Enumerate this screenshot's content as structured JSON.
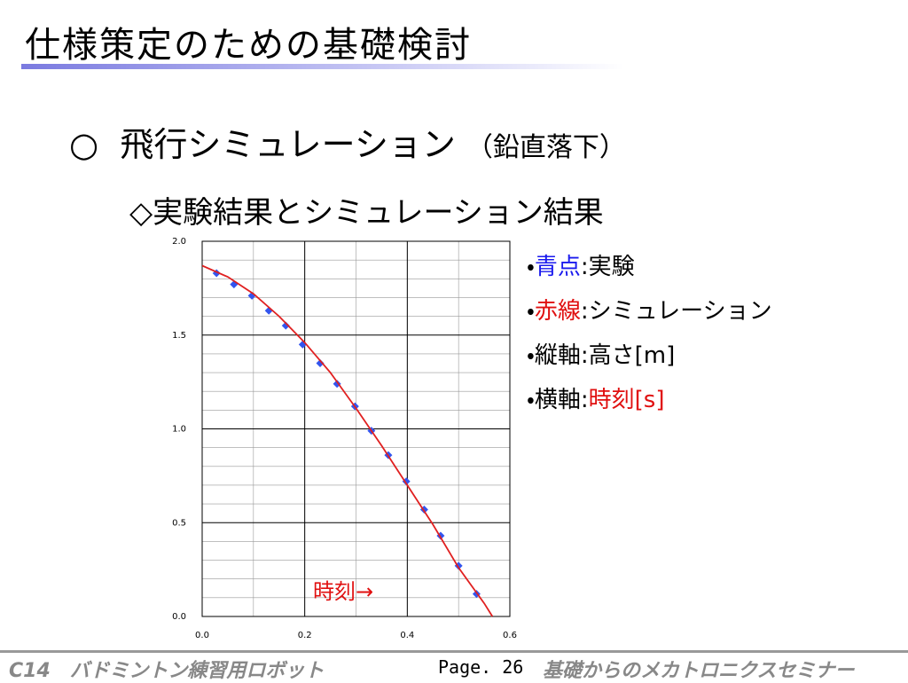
{
  "title": "仕様策定のための基礎検討",
  "heading": {
    "mark": "○",
    "text": "飛行シミュレーション",
    "note": "（鉛直落下）"
  },
  "subheading": "◇実験結果とシミュレーション結果",
  "notes": [
    {
      "bullet": "・",
      "term": "青点",
      "sep": ":",
      "desc": "実験"
    },
    {
      "bullet": "・",
      "term": "赤線",
      "sep": ":",
      "desc": "シミュレーション"
    },
    {
      "bullet": "・",
      "term": "縦軸",
      "sep": ":",
      "desc": "高さ[m]"
    },
    {
      "bullet": "・",
      "term": "横軸",
      "sep": ":",
      "desc": "時刻[s]"
    }
  ],
  "footer": {
    "left": "C14　バドミントン練習用ロボット",
    "page": "Page. 26",
    "right": "基礎からのメカトロニクスセミナー"
  },
  "chart_data": {
    "type": "scatter",
    "annotation": "時刻→",
    "xlim": [
      0,
      0.6
    ],
    "ylim": [
      0,
      2.0
    ],
    "xticks": [
      {
        "value": 0,
        "label": "0.0"
      },
      0.2,
      0.4,
      0.6
    ],
    "yticks": [
      {
        "value": 0,
        "label": "0.0"
      },
      0.5,
      {
        "value": 1.0,
        "label": "1.0"
      },
      1.5,
      {
        "value": 2.0,
        "label": "2.0"
      }
    ],
    "grid": true,
    "grid_step": {
      "x": 0.1,
      "y": 0.1
    },
    "series": [
      {
        "type": "scatter",
        "color": "#3355ee",
        "x": [
          0.028,
          0.062,
          0.097,
          0.13,
          0.163,
          0.196,
          0.23,
          0.263,
          0.298,
          0.33,
          0.363,
          0.398,
          0.433,
          0.465,
          0.5,
          0.535
        ],
        "values": [
          1.83,
          1.77,
          1.71,
          1.63,
          1.55,
          1.45,
          1.35,
          1.24,
          1.12,
          0.99,
          0.86,
          0.72,
          0.57,
          0.43,
          0.27,
          0.12
        ]
      },
      {
        "type": "line",
        "color": "#e02020",
        "x": [
          0,
          0.05,
          0.1,
          0.15,
          0.2,
          0.25,
          0.3,
          0.35,
          0.4,
          0.45,
          0.5,
          0.55,
          0.566
        ],
        "values": [
          1.87,
          1.81,
          1.72,
          1.6,
          1.46,
          1.3,
          1.11,
          0.91,
          0.7,
          0.49,
          0.26,
          0.07,
          0
        ]
      }
    ]
  }
}
